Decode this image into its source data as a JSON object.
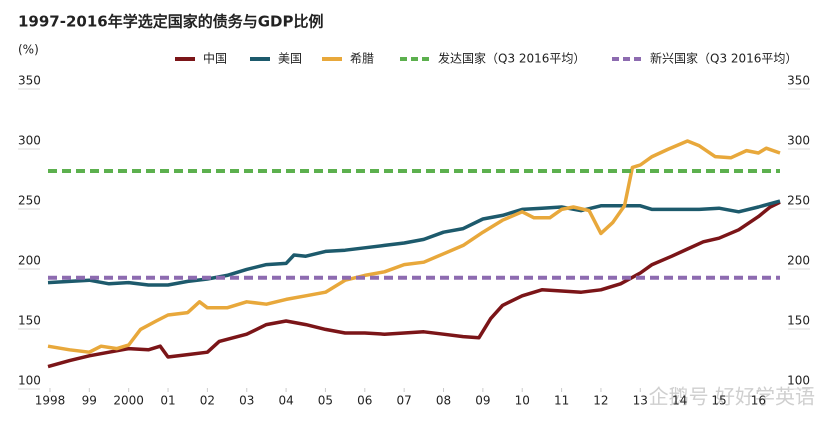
{
  "chart_data": {
    "type": "line",
    "title": "1997-2016年学选定国家的债务与GDP比例",
    "y_label": "(%)",
    "watermark": "企鹅号 好好学英语",
    "xlim": [
      1997.95,
      2016.55
    ],
    "xticks": [
      1998,
      {
        "value": 1999,
        "label": "99"
      },
      2000,
      {
        "value": 2001,
        "label": "01"
      },
      {
        "value": 2002,
        "label": "02"
      },
      {
        "value": 2003,
        "label": "03"
      },
      {
        "value": 2004,
        "label": "04"
      },
      {
        "value": 2005,
        "label": "05"
      },
      {
        "value": 2006,
        "label": "06"
      },
      {
        "value": 2007,
        "label": "07"
      },
      {
        "value": 2008,
        "label": "08"
      },
      {
        "value": 2009,
        "label": "09"
      },
      {
        "value": 2010,
        "label": "10"
      },
      {
        "value": 2011,
        "label": "11"
      },
      {
        "value": 2012,
        "label": "12"
      },
      {
        "value": 2013,
        "label": "13"
      },
      {
        "value": 2014,
        "label": "14"
      },
      {
        "value": 2015,
        "label": "15"
      },
      {
        "value": 2016,
        "label": "16"
      }
    ],
    "ylim": [
      100,
      350
    ],
    "yticks": [
      100,
      150,
      200,
      250,
      300,
      350
    ],
    "y2lim": [
      100,
      350
    ],
    "y2ticks": [
      100,
      150,
      200,
      250,
      300,
      350
    ],
    "series": [
      {
        "name": "中国",
        "color": "#7b1518",
        "dashed": false,
        "x": [
          1997.95,
          1998.5,
          1999,
          1999.5,
          2000,
          2000.5,
          2000.8,
          2001,
          2001.5,
          2002,
          2002.3,
          2003,
          2003.5,
          2004,
          2004.5,
          2005,
          2005.5,
          2006,
          2006.5,
          2007,
          2007.5,
          2008,
          2008.5,
          2008.9,
          2009.2,
          2009.5,
          2010,
          2010.5,
          2011,
          2011.5,
          2012,
          2012.5,
          2013,
          2013.3,
          2013.8,
          2014.2,
          2014.6,
          2015,
          2015.5,
          2016,
          2016.3,
          2016.55
        ],
        "values": [
          112,
          117,
          121,
          124,
          127,
          126,
          129,
          120,
          122,
          124,
          133,
          139,
          147,
          150,
          147,
          143,
          140,
          140,
          139,
          140,
          141,
          139,
          137,
          136,
          152,
          163,
          171,
          176,
          175,
          174,
          176,
          181,
          190,
          197,
          204,
          210,
          216,
          219,
          226,
          237,
          245,
          249
        ]
      },
      {
        "name": "美国",
        "color": "#1d5a6c",
        "dashed": false,
        "x": [
          1997.95,
          1999,
          1999.5,
          2000,
          2000.5,
          2001,
          2001.5,
          2002,
          2002.5,
          2003,
          2003.5,
          2004,
          2004.2,
          2004.5,
          2005,
          2005.5,
          2006,
          2006.5,
          2007,
          2007.5,
          2008,
          2008.5,
          2009,
          2009.5,
          2010,
          2010.5,
          2011,
          2011.5,
          2012,
          2012.5,
          2013,
          2013.3,
          2014,
          2014.5,
          2015,
          2015.5,
          2016,
          2016.55
        ],
        "values": [
          182,
          184,
          181,
          182,
          180,
          180,
          183,
          185,
          188,
          193,
          197,
          198,
          205,
          204,
          208,
          209,
          211,
          213,
          215,
          218,
          224,
          227,
          235,
          238,
          243,
          244,
          245,
          242,
          246,
          246,
          246,
          243,
          243,
          243,
          244,
          241,
          245,
          250
        ]
      },
      {
        "name": "希腊",
        "color": "#e8a83b",
        "dashed": false,
        "x": [
          1997.95,
          1998.5,
          1999,
          1999.3,
          1999.7,
          2000,
          2000.3,
          2000.7,
          2001,
          2001.5,
          2001.8,
          2002,
          2002.5,
          2003,
          2003.5,
          2004,
          2004.5,
          2005,
          2005.5,
          2006,
          2006.5,
          2007,
          2007.5,
          2008,
          2008.5,
          2009,
          2009.5,
          2010,
          2010.3,
          2010.7,
          2011,
          2011.3,
          2011.7,
          2012,
          2012.3,
          2012.6,
          2012.8,
          2013,
          2013.3,
          2013.7,
          2014.2,
          2014.5,
          2014.9,
          2015.3,
          2015.7,
          2016,
          2016.2,
          2016.55
        ],
        "values": [
          129,
          126,
          124,
          129,
          127,
          130,
          143,
          150,
          155,
          157,
          166,
          161,
          161,
          166,
          164,
          168,
          171,
          174,
          184,
          188,
          191,
          197,
          199,
          206,
          213,
          224,
          234,
          241,
          236,
          236,
          243,
          245,
          242,
          223,
          232,
          246,
          278,
          280,
          287,
          293,
          300,
          296,
          287,
          286,
          292,
          290,
          294,
          290
        ]
      },
      {
        "name": "发达国家（Q3 2016平均）",
        "color": "#5cb04e",
        "dashed": true,
        "x": [
          1997.95,
          2016.55
        ],
        "values": [
          275,
          275
        ]
      },
      {
        "name": "新兴国家（Q3 2016平均）",
        "color": "#8d6bb0",
        "dashed": true,
        "x": [
          1997.95,
          2016.55
        ],
        "values": [
          186,
          186
        ]
      }
    ]
  }
}
